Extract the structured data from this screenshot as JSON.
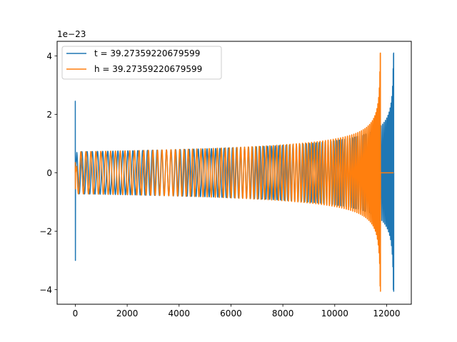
{
  "chart_data": {
    "type": "line",
    "title": "",
    "xlabel": "",
    "ylabel": "",
    "y_offset_label": "1e−23",
    "xlim": [
      -700,
      12950
    ],
    "ylim": [
      -4.5,
      4.5
    ],
    "x_ticks": [
      0,
      2000,
      4000,
      6000,
      8000,
      10000,
      12000
    ],
    "x_tick_labels": [
      "0",
      "2000",
      "4000",
      "6000",
      "8000",
      "10000",
      "12000"
    ],
    "y_ticks": [
      -4,
      -2,
      0,
      2,
      4
    ],
    "y_tick_labels": [
      "−4",
      "−2",
      "0",
      "2",
      "4"
    ],
    "grid": false,
    "legend_position": "top-left",
    "series": [
      {
        "name": "t = 39.27359220679599",
        "color": "#1f77b4",
        "x_start": 0,
        "x_merger": 12270,
        "x_end": 12270,
        "start_spike_max": 2.45,
        "start_spike_min": -3.0,
        "inspiral_amplitude_start": 0.72,
        "peak_amplitude": 4.1
      },
      {
        "name": "h = 39.27359220679599",
        "color": "#ff7f0e",
        "x_start": 0,
        "x_merger": 11760,
        "x_end": 12270,
        "start_spike_max": 0.35,
        "start_spike_min": -0.55,
        "inspiral_amplitude_start": 0.72,
        "peak_amplitude": 4.1
      }
    ]
  }
}
